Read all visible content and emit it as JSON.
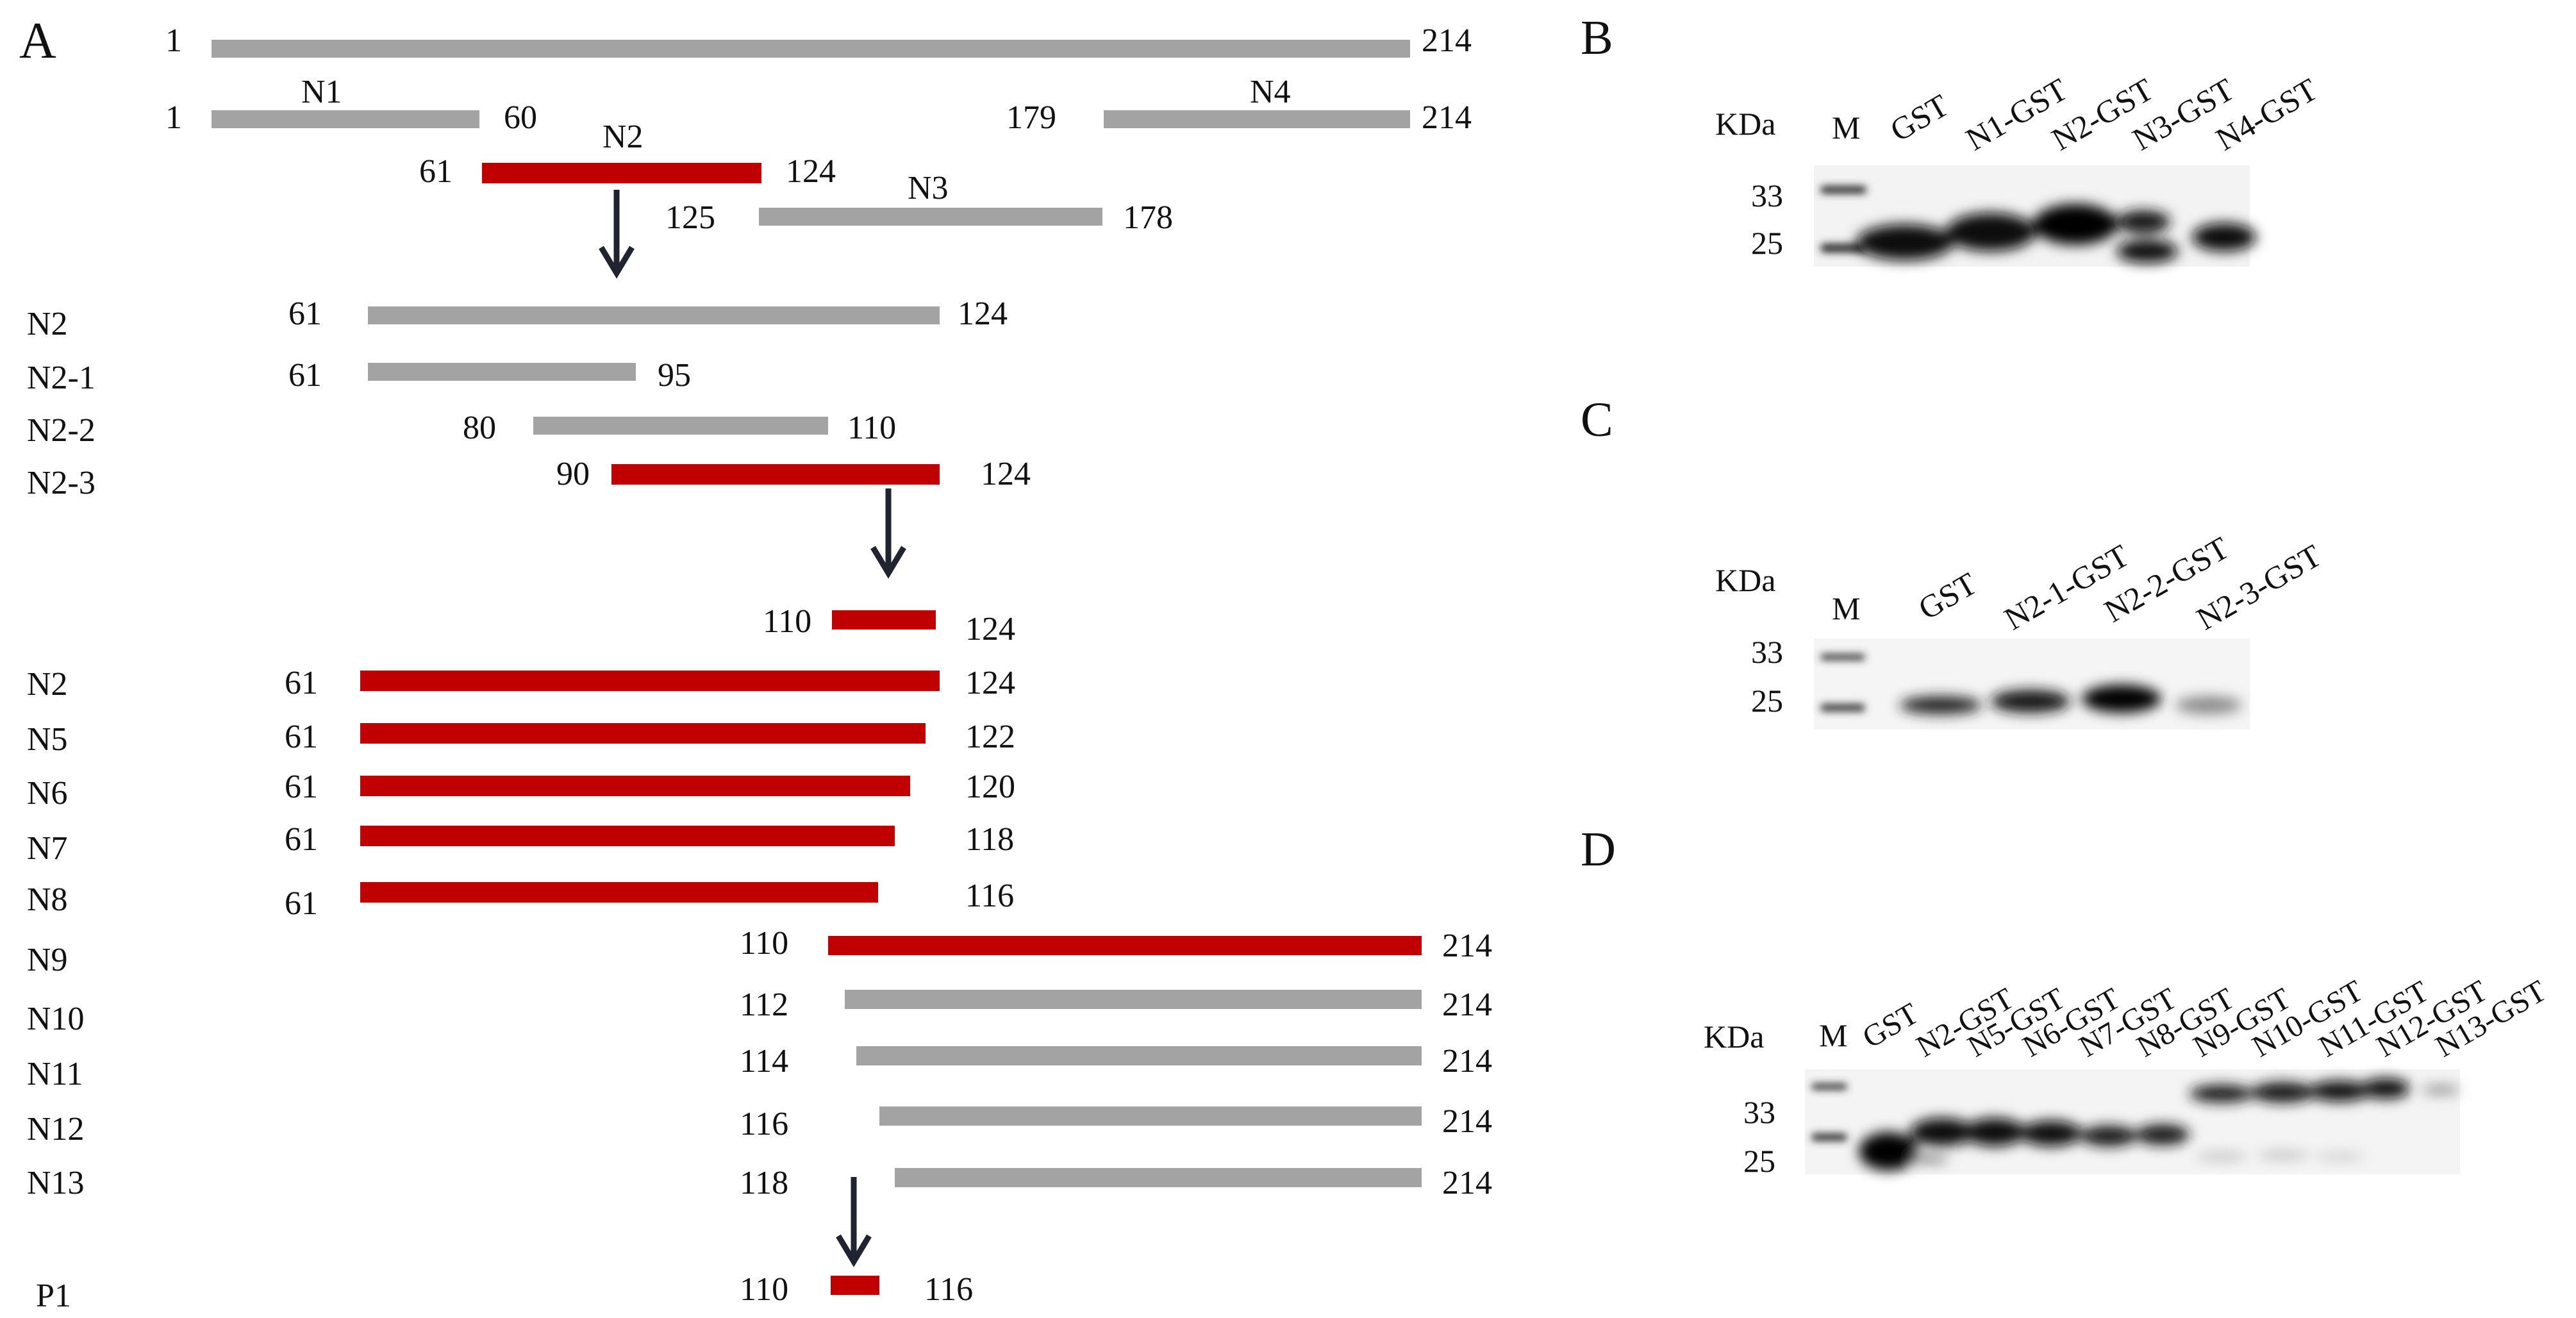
{
  "panel_a": {
    "label": "A",
    "colors": {
      "grey": "#a3a3a3",
      "red": "#c00000",
      "arrow": "#1f2430"
    },
    "bars": [
      {
        "id": "full",
        "start_label": "1",
        "end_label": "214",
        "color": "grey"
      },
      {
        "id": "n1",
        "name": "N1",
        "start_label": "1",
        "end_label": "60",
        "color": "grey"
      },
      {
        "id": "n4",
        "name": "N4",
        "start_label": "179",
        "end_label": "214",
        "color": "grey"
      },
      {
        "id": "n2-top",
        "name": "N2",
        "start_label": "61",
        "end_label": "124",
        "color": "red"
      },
      {
        "id": "n3",
        "name": "N3",
        "start_label": "125",
        "end_label": "178",
        "color": "grey"
      },
      {
        "id": "n2-b",
        "row": "N2",
        "start_label": "61",
        "end_label": "124",
        "color": "grey"
      },
      {
        "id": "n2-1",
        "row": "N2-1",
        "start_label": "61",
        "end_label": "95",
        "color": "grey"
      },
      {
        "id": "n2-2",
        "row": "N2-2",
        "start_label": "80",
        "end_label": "110",
        "color": "grey"
      },
      {
        "id": "n2-3",
        "row": "N2-3",
        "start_label": "90",
        "end_label": "124",
        "color": "red"
      },
      {
        "id": "frag110",
        "start_label": "110",
        "end_label": "124",
        "color": "red"
      },
      {
        "id": "n2-c",
        "row": "N2",
        "start_label": "61",
        "end_label": "124",
        "color": "red"
      },
      {
        "id": "n5",
        "row": "N5",
        "start_label": "61",
        "end_label": "122",
        "color": "red"
      },
      {
        "id": "n6",
        "row": "N6",
        "start_label": "61",
        "end_label": "120",
        "color": "red"
      },
      {
        "id": "n7",
        "row": "N7",
        "start_label": "61",
        "end_label": "118",
        "color": "red"
      },
      {
        "id": "n8",
        "row": "N8",
        "start_label": "61",
        "end_label": "116",
        "color": "red"
      },
      {
        "id": "n9",
        "row": "N9",
        "start_label": "110",
        "end_label": "214",
        "color": "red"
      },
      {
        "id": "n10",
        "row": "N10",
        "start_label": "112",
        "end_label": "214",
        "color": "grey"
      },
      {
        "id": "n11",
        "row": "N11",
        "start_label": "114",
        "end_label": "214",
        "color": "grey"
      },
      {
        "id": "n12",
        "row": "N12",
        "start_label": "116",
        "end_label": "214",
        "color": "grey"
      },
      {
        "id": "n13",
        "row": "N13",
        "start_label": "118",
        "end_label": "214",
        "color": "grey"
      },
      {
        "id": "p1",
        "row": "P1",
        "start_label": "110",
        "end_label": "116",
        "color": "red"
      }
    ]
  },
  "panel_b": {
    "label": "B",
    "kda": "KDa",
    "lane_labels": [
      "M",
      "GST",
      "N1-GST",
      "N2-GST",
      "N3-GST",
      "N4-GST"
    ],
    "markers": [
      "33",
      "25"
    ]
  },
  "panel_c": {
    "label": "C",
    "kda": "KDa",
    "lane_labels": [
      "M",
      "GST",
      "N2-1-GST",
      "N2-2-GST",
      "N2-3-GST"
    ],
    "markers": [
      "33",
      "25"
    ]
  },
  "panel_d": {
    "label": "D",
    "kda": "KDa",
    "lane_labels": [
      "M",
      "GST",
      "N2-GST",
      "N5-GST",
      "N6-GST",
      "N7-GST",
      "N8-GST",
      "N9-GST",
      "N10-GST",
      "N11-GST",
      "N12-GST",
      "N13-GST"
    ],
    "markers": [
      "33",
      "25"
    ]
  }
}
